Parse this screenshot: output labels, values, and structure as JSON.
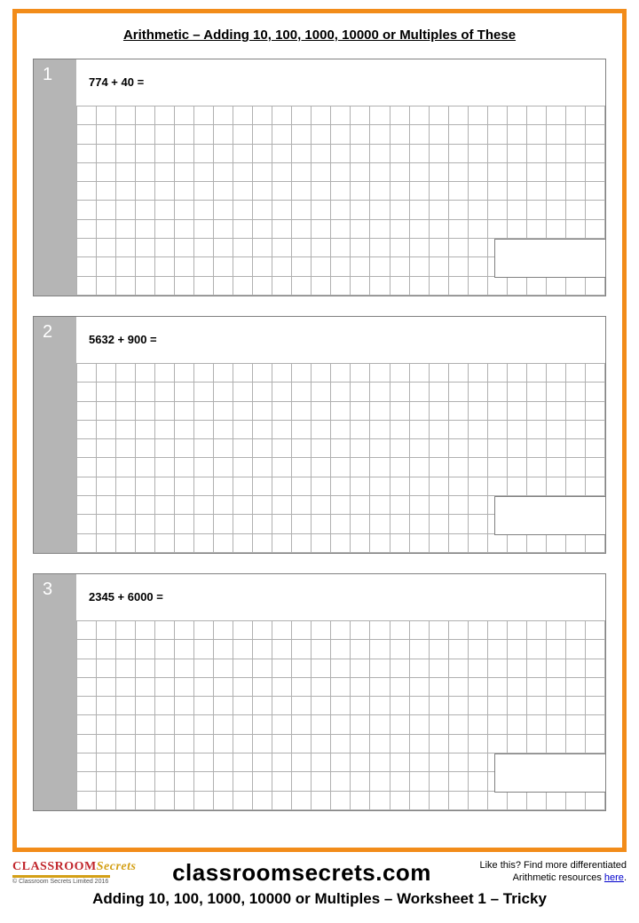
{
  "title": "Arithmetic – Adding 10, 100, 1000, 10000 or Multiples of These",
  "grid": {
    "rows": 10,
    "cols": 27
  },
  "colors": {
    "frame_border": "#f28c1a",
    "num_bg": "#b5b5b5",
    "num_text": "#ffffff",
    "grid_line": "#b0b0b0",
    "box_border": "#808080"
  },
  "problems": [
    {
      "num": "1",
      "question": "774 + 40 ="
    },
    {
      "num": "2",
      "question": "5632 + 900 ="
    },
    {
      "num": "3",
      "question": "2345 + 6000 ="
    }
  ],
  "footer": {
    "logo_a": "CLASSROOM",
    "logo_b": "Secrets",
    "copyright": "© Classroom Secrets Limited 2016",
    "site": "classroomsecrets.com",
    "promo_line1": "Like this? Find more differentiated",
    "promo_line2": "Arithmetic resources ",
    "promo_link": "here",
    "promo_tail": ".",
    "subtitle": "Adding 10, 100, 1000, 10000 or Multiples – Worksheet 1 – Tricky"
  }
}
